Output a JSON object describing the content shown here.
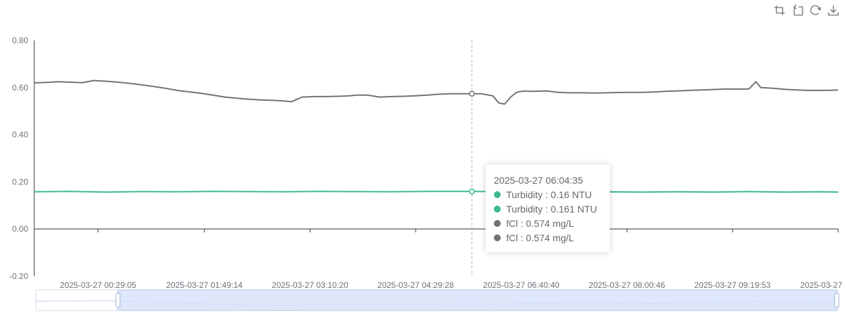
{
  "toolbox": {
    "icons": [
      "zoom-icon",
      "zoom-reset-icon",
      "restore-icon",
      "save-image-icon"
    ]
  },
  "colors": {
    "turbidity": "#3dba8c",
    "fcl": "#6e7574",
    "axis": "#333333",
    "axis_label": "#6e7079",
    "slider_fill": "#d3dff8",
    "slider_border": "#b9c6e8"
  },
  "tooltip": {
    "time": "2025-03-27 06:04:35",
    "rows": [
      {
        "label": "Turbidity : 0.16 NTU",
        "color": "#3dba8c"
      },
      {
        "label": "Turbidity : 0.161 NTU",
        "color": "#3dba8c"
      },
      {
        "label": "fCl : 0.574 mg/L",
        "color": "#6e7574"
      },
      {
        "label": "fCl : 0.574 mg/L",
        "color": "#6e7574"
      }
    ]
  },
  "chart_data": {
    "type": "line",
    "ylim": [
      -0.2,
      0.8
    ],
    "y_ticks": [
      "0.80",
      "0.60",
      "0.40",
      "0.20",
      "0.00",
      "-0.20"
    ],
    "x_tick_labels": [
      "2025-03-27 00:29:05",
      "2025-03-27 01:49:14",
      "2025-03-27 03:10:20",
      "2025-03-27 04:29:28",
      "2025-03-27 06:40:40",
      "2025-03-27 08:00:46",
      "2025-03-27 09:19:53",
      "2025-03-27"
    ],
    "grid": false,
    "highlighted_time": "2025-03-27 06:04:35",
    "series": [
      {
        "name": "fCl",
        "unit": "mg/L",
        "x": [
          "00:00",
          "00:10",
          "00:20",
          "00:29",
          "00:40",
          "00:50",
          "01:00",
          "01:10",
          "01:20",
          "01:30",
          "01:40",
          "01:50",
          "02:00",
          "02:10",
          "02:20",
          "02:30",
          "02:40",
          "02:50",
          "03:00",
          "03:10",
          "03:20",
          "03:30",
          "03:36",
          "03:45",
          "03:55",
          "04:05",
          "04:15",
          "04:25",
          "04:30",
          "04:40",
          "04:50",
          "05:00",
          "05:10",
          "05:20",
          "05:30",
          "05:40",
          "05:50",
          "06:00",
          "06:04",
          "06:15",
          "06:25",
          "06:30",
          "06:35",
          "06:40",
          "06:45",
          "06:50",
          "07:00",
          "07:10",
          "07:20",
          "07:30",
          "07:40",
          "07:50",
          "08:00",
          "08:10",
          "08:20",
          "08:30",
          "08:40",
          "08:50",
          "09:00",
          "09:10",
          "09:20",
          "09:30",
          "09:40",
          "09:50",
          "10:00",
          "10:06",
          "10:10",
          "10:20",
          "10:30",
          "10:40",
          "10:50",
          "11:00",
          "11:10",
          "11:15"
        ],
        "values": [
          0.62,
          0.622,
          0.625,
          0.623,
          0.621,
          0.63,
          0.627,
          0.623,
          0.618,
          0.612,
          0.605,
          0.597,
          0.588,
          0.582,
          0.576,
          0.568,
          0.56,
          0.555,
          0.551,
          0.548,
          0.546,
          0.543,
          0.54,
          0.56,
          0.562,
          0.562,
          0.563,
          0.565,
          0.568,
          0.568,
          0.56,
          0.562,
          0.563,
          0.565,
          0.568,
          0.572,
          0.574,
          0.574,
          0.574,
          0.574,
          0.565,
          0.535,
          0.53,
          0.56,
          0.58,
          0.585,
          0.584,
          0.586,
          0.58,
          0.578,
          0.578,
          0.577,
          0.578,
          0.579,
          0.58,
          0.58,
          0.581,
          0.584,
          0.586,
          0.588,
          0.59,
          0.592,
          0.594,
          0.594,
          0.594,
          0.625,
          0.6,
          0.597,
          0.593,
          0.59,
          0.588,
          0.588,
          0.589,
          0.59
        ]
      },
      {
        "name": "Turbidity",
        "unit": "NTU",
        "x": [
          "00:00",
          "00:30",
          "01:00",
          "01:30",
          "02:00",
          "02:30",
          "03:00",
          "03:30",
          "04:00",
          "04:30",
          "05:00",
          "05:30",
          "06:00",
          "06:04",
          "06:30",
          "07:00",
          "07:30",
          "08:00",
          "08:30",
          "09:00",
          "09:30",
          "10:00",
          "10:30",
          "11:00",
          "11:15"
        ],
        "values": [
          0.158,
          0.16,
          0.157,
          0.159,
          0.158,
          0.16,
          0.159,
          0.158,
          0.16,
          0.159,
          0.158,
          0.16,
          0.16,
          0.16,
          0.159,
          0.158,
          0.159,
          0.158,
          0.157,
          0.158,
          0.157,
          0.159,
          0.157,
          0.158,
          0.157
        ]
      }
    ]
  }
}
